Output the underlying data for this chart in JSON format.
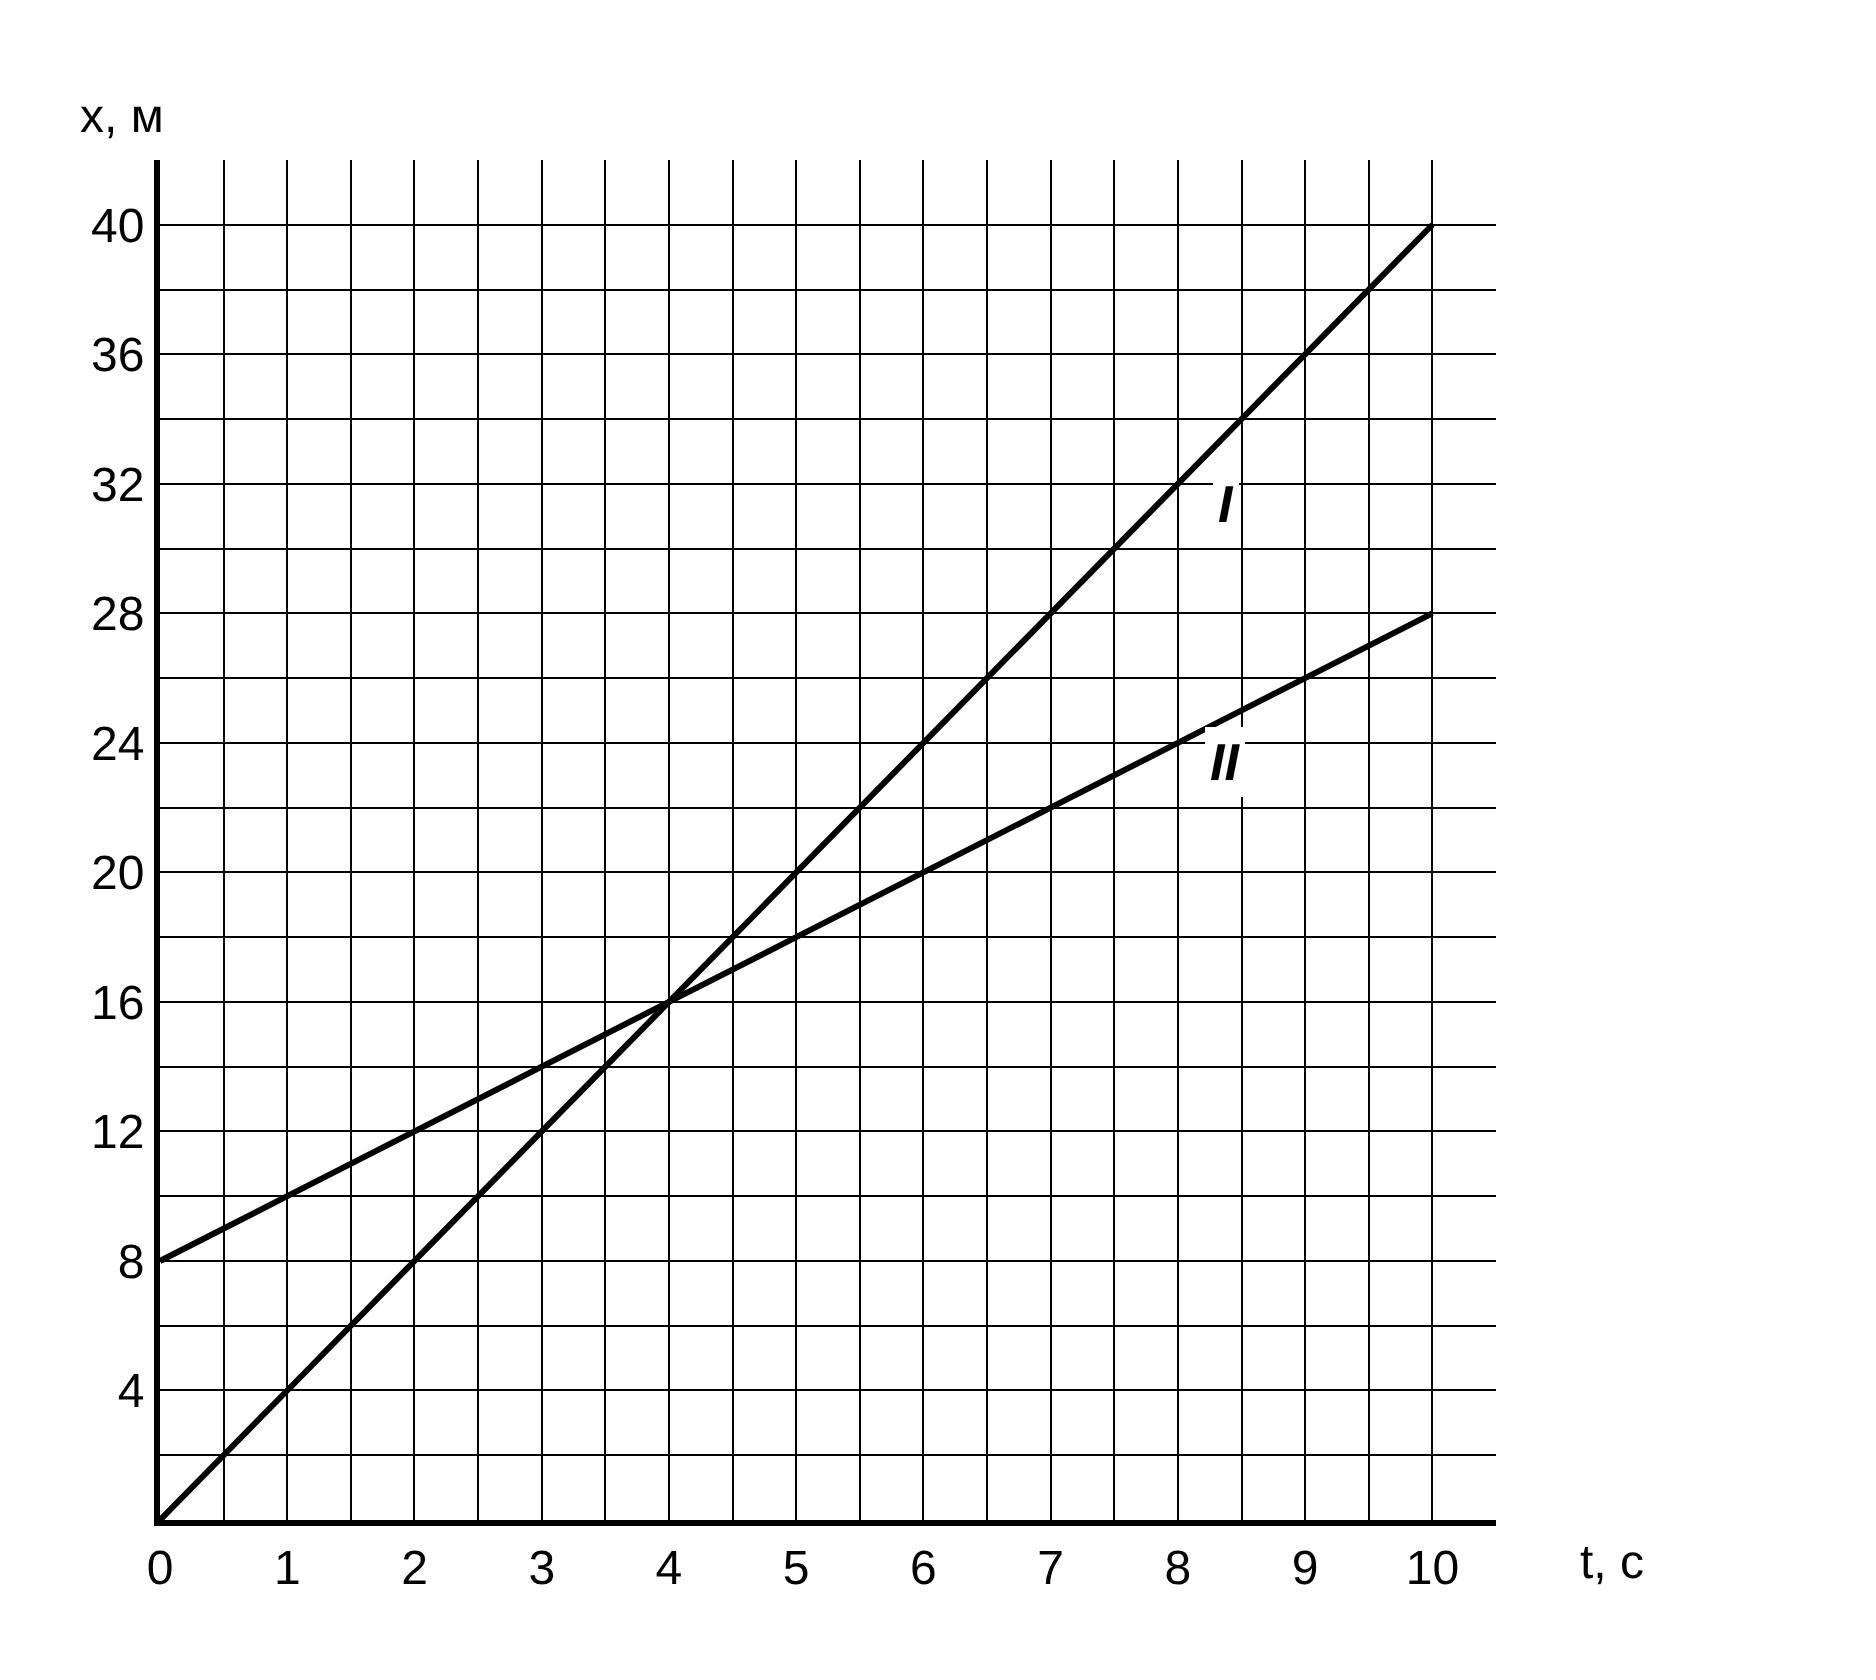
{
  "chart_data": {
    "type": "line",
    "xlabel": "t, с",
    "ylabel": "x, м",
    "x": [
      0,
      1,
      2,
      3,
      4,
      5,
      6,
      7,
      8,
      9,
      10
    ],
    "series": [
      {
        "name": "I",
        "color": "#000000",
        "values": [
          0,
          4,
          8,
          12,
          16,
          20,
          24,
          28,
          32,
          36,
          40
        ]
      },
      {
        "name": "II",
        "color": "#000000",
        "values": [
          8,
          10,
          12,
          14,
          16,
          18,
          20,
          22,
          24,
          26,
          28
        ]
      }
    ],
    "xlim": [
      0,
      10.5
    ],
    "ylim": [
      0,
      42
    ],
    "xticks": [
      0,
      {
        "value": 0.5,
        "label": null
      },
      1,
      {
        "value": 1.5,
        "label": null
      },
      2,
      {
        "value": 2.5,
        "label": null
      },
      3,
      {
        "value": 3.5,
        "label": null
      },
      4,
      {
        "value": 4.5,
        "label": null
      },
      5,
      {
        "value": 5.5,
        "label": null
      },
      6,
      {
        "value": 6.5,
        "label": null
      },
      7,
      {
        "value": 7.5,
        "label": null
      },
      8,
      {
        "value": 8.5,
        "label": null
      },
      9,
      {
        "value": 9.5,
        "label": null
      },
      10
    ],
    "yticks": [
      {
        "value": 2,
        "label": null
      },
      4,
      {
        "value": 6,
        "label": null
      },
      8,
      {
        "value": 10,
        "label": null
      },
      12,
      {
        "value": 14,
        "label": null
      },
      16,
      {
        "value": 18,
        "label": null
      },
      20,
      {
        "value": 22,
        "label": null
      },
      24,
      {
        "value": 26,
        "label": null
      },
      28,
      {
        "value": 30,
        "label": null
      },
      32,
      {
        "value": 34,
        "label": null
      },
      36,
      {
        "value": 38,
        "label": null
      },
      40
    ],
    "grid": true,
    "legend": false,
    "marker": "none",
    "line_style": "solid"
  }
}
